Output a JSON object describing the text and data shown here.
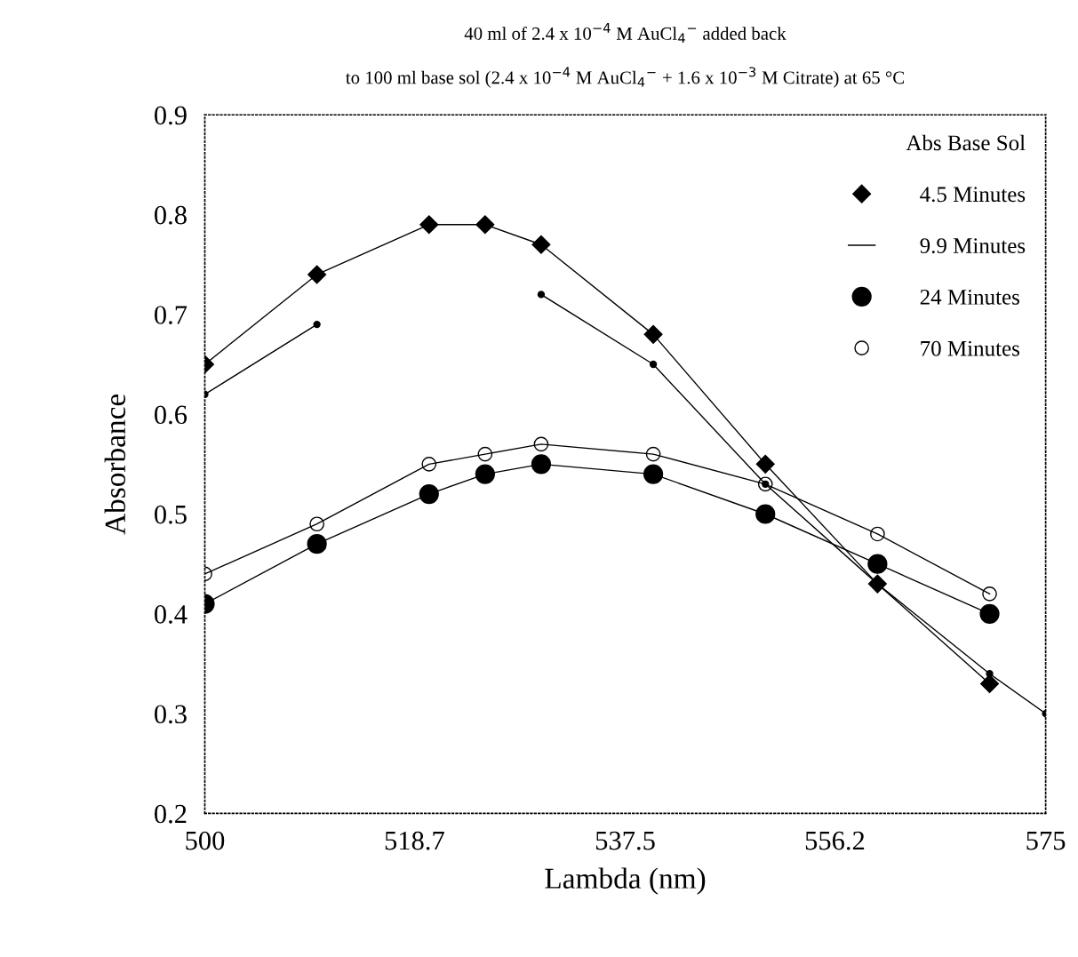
{
  "chart_data": {
    "type": "line",
    "title": "40 ml of 2.4 x 10$^{−4}$ M AuCl$_{4}$$^{−}$ added back",
    "subtitle": "to 100 ml base sol (2.4 x 10$^{−4}$ M AuCl$_{4}$$^{−}$ + 1.6 x 10$^{−3}$ M Citrate) at 65 °C",
    "xlabel": "Lambda (nm)",
    "ylabel": "Absorbance",
    "legend_title": "Abs Base Sol",
    "xlim": [
      500,
      575
    ],
    "xticks": [
      500,
      518.7,
      537.5,
      556.2,
      575
    ],
    "ylim": [
      0.2,
      0.9
    ],
    "yticks": [
      0.2,
      0.3,
      0.4,
      0.5,
      0.6,
      0.7,
      0.8,
      0.9
    ],
    "grid": false,
    "legend": "top right",
    "series": [
      {
        "name": "4.5 Minutes",
        "color": "#000000",
        "marker": "diamond",
        "x": [
          500,
          510,
          520,
          525,
          530,
          540,
          550,
          560,
          570
        ],
        "values": [
          0.65,
          0.74,
          0.79,
          0.79,
          0.77,
          0.68,
          0.55,
          0.43,
          0.33
        ]
      },
      {
        "name": "9.9 Minutes",
        "color": "#000000",
        "marker": "point",
        "x": [
          500,
          510,
          520,
          525,
          530,
          540,
          550,
          560,
          570,
          575
        ],
        "values": [
          0.62,
          0.69,
          null,
          null,
          0.72,
          0.65,
          0.53,
          0.43,
          0.34,
          0.3
        ]
      },
      {
        "name": "24 Minutes",
        "color": "#000000",
        "marker": "circle",
        "x": [
          500,
          510,
          520,
          525,
          530,
          540,
          550,
          560,
          570
        ],
        "values": [
          0.41,
          0.47,
          0.52,
          0.54,
          0.55,
          0.54,
          0.5,
          0.45,
          0.4
        ]
      },
      {
        "name": "70 Minutes",
        "color": "#000000",
        "marker": "circle_open",
        "x": [
          500,
          510,
          520,
          525,
          530,
          540,
          550,
          560,
          570
        ],
        "values": [
          0.44,
          0.49,
          0.55,
          0.56,
          0.57,
          0.56,
          0.53,
          0.48,
          0.42
        ]
      }
    ]
  }
}
